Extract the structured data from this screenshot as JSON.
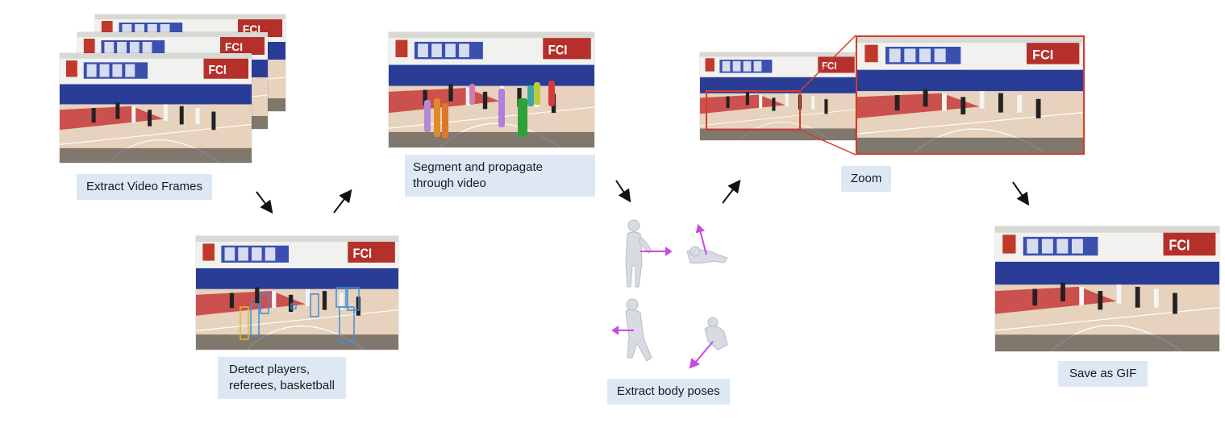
{
  "steps": {
    "extract_frames": {
      "label": "Extract Video Frames"
    },
    "detect": {
      "label_line1": "Detect players,",
      "label_line2": "referees, basketball"
    },
    "segment": {
      "label_line1": "Segment and propagate",
      "label_line2": "through video"
    },
    "body_poses": {
      "label": "Extract body poses"
    },
    "zoom": {
      "label": "Zoom"
    },
    "save_gif": {
      "label": "Save as GIF"
    }
  },
  "banner_text": "FCI"
}
